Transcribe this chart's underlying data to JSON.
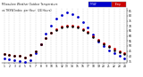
{
  "title": "Milwaukee Weather Outdoor Temperature vs THSW Index per Hour (24 Hours)",
  "hours": [
    1,
    2,
    3,
    4,
    5,
    6,
    7,
    8,
    9,
    10,
    11,
    12,
    13,
    14,
    15,
    16,
    17,
    18,
    19,
    20,
    21,
    22,
    23,
    24
  ],
  "outdoor_temp": [
    42,
    41,
    40,
    40,
    39,
    41,
    45,
    52,
    58,
    63,
    67,
    69,
    70,
    70,
    69,
    67,
    64,
    60,
    56,
    53,
    50,
    47,
    45,
    43
  ],
  "thsw_index": [
    38,
    37,
    36,
    35,
    34,
    36,
    43,
    52,
    62,
    70,
    77,
    81,
    83,
    82,
    79,
    74,
    68,
    61,
    54,
    50,
    46,
    43,
    40,
    38
  ],
  "hi_index": [
    42,
    41,
    40,
    40,
    39,
    41,
    45,
    52,
    58,
    63,
    66,
    68,
    69,
    69,
    68,
    66,
    63,
    59,
    55,
    52,
    49,
    46,
    44,
    42
  ],
  "bg_color": "#ffffff",
  "temp_color": "#cc0000",
  "thsw_color": "#0000cc",
  "hi_color": "#000000",
  "grid_color": "#bbbbbb",
  "ylim": [
    33,
    88
  ],
  "yticks": [
    35,
    40,
    45,
    50,
    55,
    60,
    65,
    70,
    75,
    80,
    85
  ],
  "xlim": [
    0.5,
    24.5
  ]
}
